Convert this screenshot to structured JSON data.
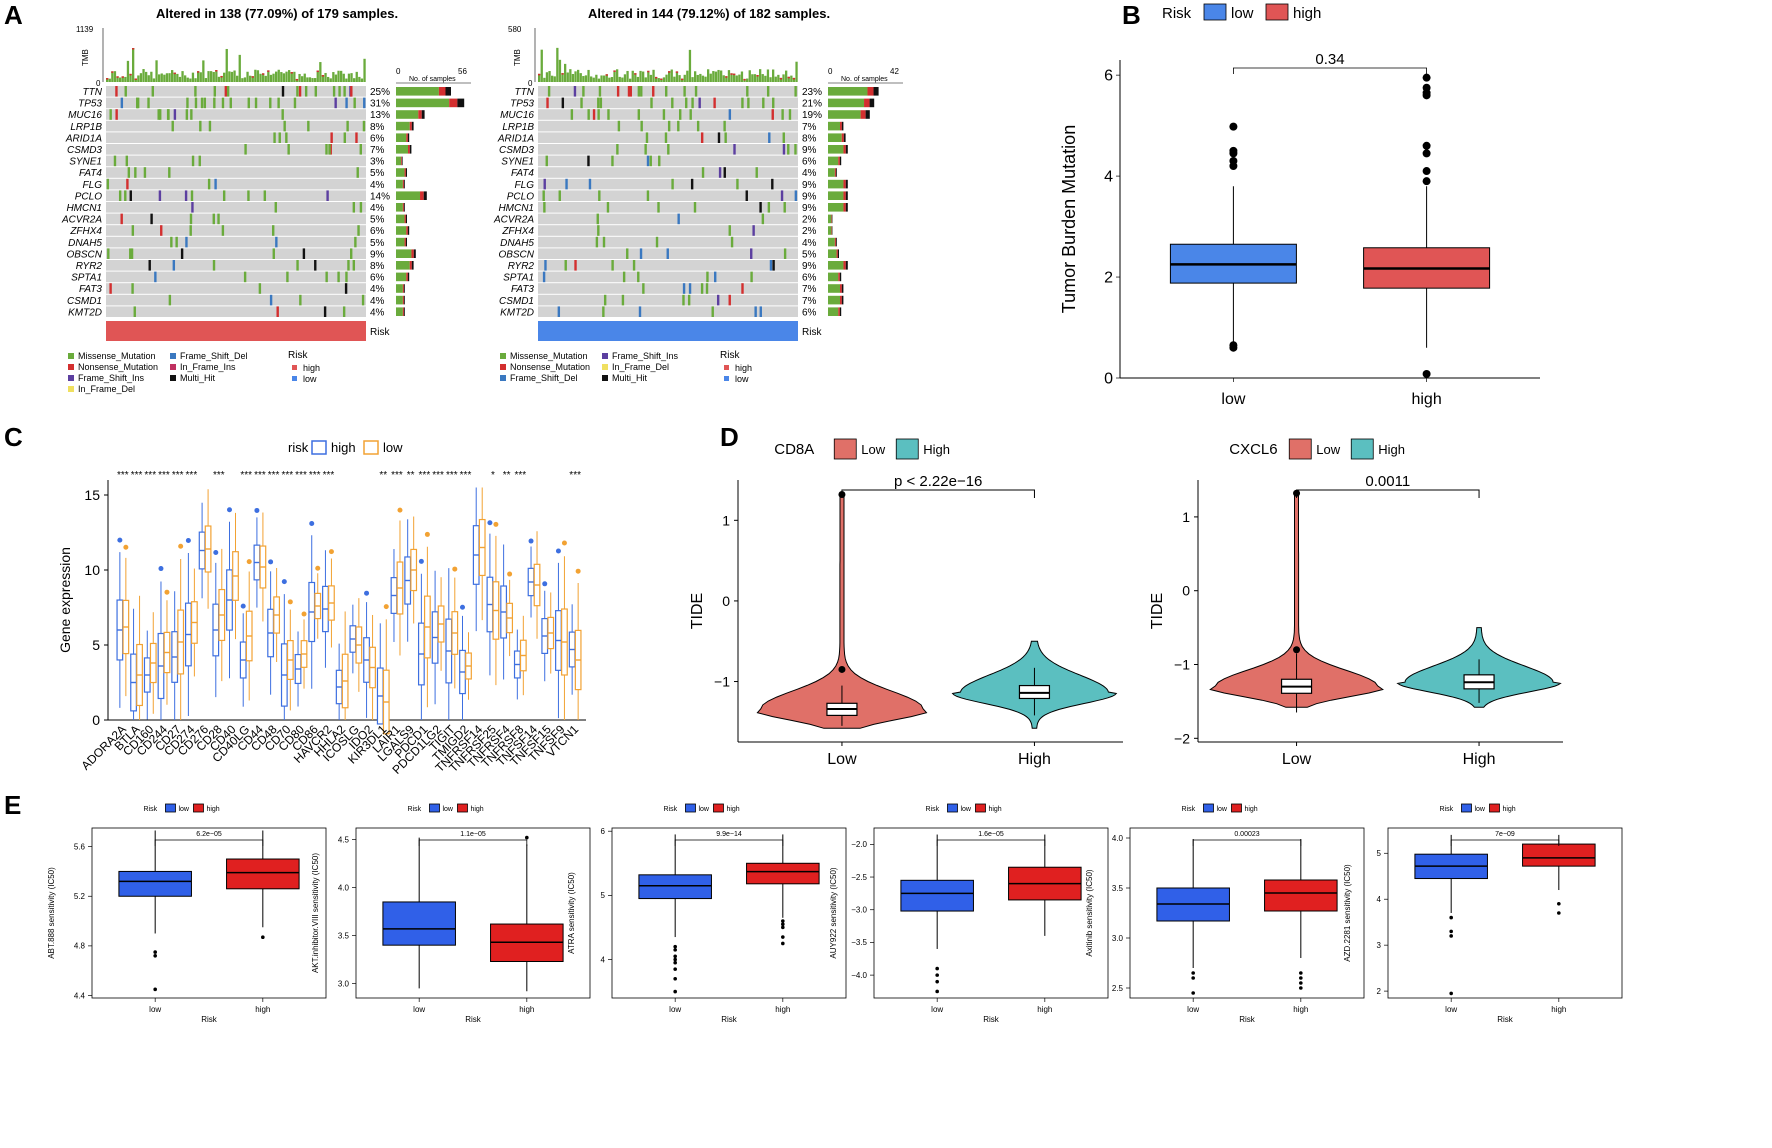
{
  "panel_labels": [
    "A",
    "B",
    "C",
    "D",
    "E"
  ],
  "chart_data": [
    {
      "type": "oncoplot",
      "panel": "A-left",
      "title": "Altered in 138 (77.09%) of 179 samples.",
      "tmb_label": "TMB",
      "tmb_max": "1139",
      "tmb_min": "0",
      "bar_axis_label": "No. of samples",
      "bar_axis_min": "0",
      "bar_axis_max": "56",
      "risk_label": "Risk",
      "risk_group": "high",
      "genes": [
        "TTN",
        "TP53",
        "MUC16",
        "LRP1B",
        "ARID1A",
        "CSMD3",
        "SYNE1",
        "FAT4",
        "FLG",
        "PCLO",
        "HMCN1",
        "ACVR2A",
        "ZFHX4",
        "DNAH5",
        "OBSCN",
        "RYR2",
        "SPTA1",
        "FAT3",
        "CSMD1",
        "KMT2D"
      ],
      "percents": [
        "25%",
        "31%",
        "13%",
        "8%",
        "6%",
        "7%",
        "3%",
        "5%",
        "4%",
        "14%",
        "4%",
        "5%",
        "6%",
        "5%",
        "9%",
        "8%",
        "6%",
        "4%",
        "4%",
        "4%"
      ],
      "legend": [
        "Missense_Mutation",
        "Frame_Shift_Del",
        "Nonsense_Mutation",
        "In_Frame_Ins",
        "Frame_Shift_Ins",
        "Multi_Hit",
        "In_Frame_Del"
      ],
      "legend_risk_title": "Risk",
      "legend_risk": [
        "high",
        "low"
      ]
    },
    {
      "type": "oncoplot",
      "panel": "A-right",
      "title": "Altered in 144 (79.12%) of 182 samples.",
      "tmb_label": "TMB",
      "tmb_max": "580",
      "tmb_min": "0",
      "bar_axis_label": "No. of samples",
      "bar_axis_min": "0",
      "bar_axis_max": "42",
      "risk_label": "Risk",
      "risk_group": "low",
      "genes": [
        "TTN",
        "TP53",
        "MUC16",
        "LRP1B",
        "ARID1A",
        "CSMD3",
        "SYNE1",
        "FAT4",
        "FLG",
        "PCLO",
        "HMCN1",
        "ACVR2A",
        "ZFHX4",
        "DNAH5",
        "OBSCN",
        "RYR2",
        "SPTA1",
        "FAT3",
        "CSMD1",
        "KMT2D"
      ],
      "percents": [
        "23%",
        "21%",
        "19%",
        "7%",
        "8%",
        "9%",
        "6%",
        "4%",
        "9%",
        "9%",
        "9%",
        "2%",
        "2%",
        "4%",
        "5%",
        "9%",
        "6%",
        "7%",
        "7%",
        "6%"
      ],
      "legend": [
        "Missense_Mutation",
        "Frame_Shift_Ins",
        "Nonsense_Mutation",
        "In_Frame_Del",
        "Frame_Shift_Del",
        "Multi_Hit"
      ],
      "legend_risk_title": "Risk",
      "legend_risk": [
        "high",
        "low"
      ]
    },
    {
      "type": "box",
      "panel": "B",
      "legend_title": "Risk",
      "categories": [
        "low",
        "high"
      ],
      "colors": [
        "#4a86e8",
        "#e05555"
      ],
      "ylabel": "Tumor Burden Mutation",
      "ylim": [
        0,
        6.3
      ],
      "yticks": [
        "0",
        "2",
        "4",
        "6"
      ],
      "p_value": "0.34",
      "boxes": [
        {
          "name": "low",
          "whisker_low": 0.7,
          "q1": 1.88,
          "median": 2.25,
          "q3": 2.65,
          "whisker_high": 3.8,
          "outliers": [
            0.6,
            0.65,
            4.2,
            4.3,
            4.45,
            4.5,
            4.98
          ]
        },
        {
          "name": "high",
          "whisker_low": 0.6,
          "q1": 1.78,
          "median": 2.17,
          "q3": 2.58,
          "whisker_high": 3.8,
          "outliers": [
            0.08,
            3.9,
            4.1,
            4.45,
            4.6,
            5.6,
            5.65,
            5.75,
            5.95
          ]
        }
      ]
    },
    {
      "type": "box",
      "panel": "C",
      "legend_title": "risk",
      "legend": [
        "high",
        "low"
      ],
      "colors": [
        "#3d6fe0",
        "#f2a233"
      ],
      "ylabel": "Gene expression",
      "ylim": [
        0,
        16
      ],
      "yticks": [
        "0",
        "5",
        "10",
        "15"
      ],
      "genes": [
        "ADORA2A",
        "BTLA",
        "CD160",
        "CD244",
        "CD27",
        "CD274",
        "CD276",
        "CD28",
        "CD40",
        "CD40LG",
        "CD44",
        "CD48",
        "CD70",
        "CD80",
        "CD86",
        "HAVCR2",
        "HHLA2",
        "ICOSLG",
        "IDO2",
        "KIR3DL1",
        "LAIR1",
        "LGALS9",
        "PDCD1",
        "PDCD1LG2",
        "TIGIT",
        "TMIGD2",
        "TNFRSF14",
        "TNFRSF25",
        "TNFRSF4",
        "TNFRSF8",
        "TNFSF14",
        "TNFSF15",
        "TNFSF9",
        "VTCN1"
      ],
      "high_medians": [
        6.0,
        2.5,
        3.0,
        3.6,
        4.2,
        5.7,
        11.3,
        6.0,
        8.0,
        4.0,
        10.5,
        5.8,
        3.0,
        3.4,
        7.2,
        7.4,
        2.2,
        5.4,
        4.0,
        1.6,
        8.3,
        9.3,
        4.4,
        5.5,
        4.6,
        3.2,
        11.0,
        7.7,
        7.2,
        3.7,
        9.2,
        5.6,
        5.3,
        4.7
      ],
      "low_medians": [
        6.2,
        3.0,
        3.8,
        4.5,
        5.2,
        6.5,
        11.4,
        7.0,
        9.6,
        5.6,
        10.2,
        7.0,
        4.0,
        4.4,
        7.6,
        7.8,
        2.6,
        5.0,
        3.5,
        1.2,
        8.8,
        10.0,
        6.2,
        6.4,
        5.8,
        3.6,
        11.5,
        7.3,
        6.8,
        4.3,
        9.0,
        5.8,
        5.2,
        4.0
      ],
      "significance": [
        "***",
        "***",
        "***",
        "***",
        "***",
        "***",
        "",
        "***",
        "",
        "***",
        "***",
        "***",
        "***",
        "***",
        "***",
        "***",
        "",
        "",
        "",
        "**",
        "***",
        "**",
        "***",
        "***",
        "***",
        "***",
        "",
        "*",
        "**",
        "***",
        "",
        "",
        "",
        "***"
      ]
    },
    {
      "type": "violin",
      "panel": "D-left",
      "gene": "CD8A",
      "legend": [
        "Low",
        "High"
      ],
      "colors": [
        "#e07068",
        "#5bbfc0"
      ],
      "categories": [
        "Low",
        "High"
      ],
      "ylabel": "TIDE",
      "ylim": [
        -1.75,
        1.5
      ],
      "yticks": [
        "1",
        "0",
        "−1"
      ],
      "p_value": "p < 2.22e−16",
      "boxes": [
        {
          "name": "Low",
          "q1": -1.42,
          "median": -1.34,
          "q3": -1.27,
          "whisker_low": -1.55,
          "whisker_high": -1.05,
          "outliers": [
            -0.85,
            1.32
          ]
        },
        {
          "name": "High",
          "q1": -1.21,
          "median": -1.14,
          "q3": -1.05,
          "whisker_low": -1.42,
          "whisker_high": -0.83,
          "outliers": []
        }
      ]
    },
    {
      "type": "violin",
      "panel": "D-right",
      "gene": "CXCL6",
      "legend": [
        "Low",
        "High"
      ],
      "colors": [
        "#e07068",
        "#5bbfc0"
      ],
      "categories": [
        "Low",
        "High"
      ],
      "ylabel": "TIDE",
      "ylim": [
        -2.05,
        1.5
      ],
      "yticks": [
        "1",
        "0",
        "−1",
        "−2"
      ],
      "p_value": "0.0011",
      "boxes": [
        {
          "name": "Low",
          "q1": -1.39,
          "median": -1.3,
          "q3": -1.2,
          "whisker_low": -1.65,
          "whisker_high": -0.85,
          "outliers": [
            -0.8,
            1.32
          ]
        },
        {
          "name": "High",
          "q1": -1.33,
          "median": -1.24,
          "q3": -1.14,
          "whisker_low": -1.52,
          "whisker_high": -0.93,
          "outliers": []
        }
      ]
    },
    {
      "type": "box",
      "panel": "E1",
      "ylabel": "ABT.888 sensitivity (IC50)",
      "xlabel": "Risk",
      "legend_title": "Risk",
      "legend": [
        "low",
        "high"
      ],
      "colors": [
        "#3060e8",
        "#e02020"
      ],
      "categories": [
        "low",
        "high"
      ],
      "p_value": "6.2e−05",
      "ylim": [
        4.38,
        5.75
      ],
      "yticks": [
        4.4,
        4.8,
        5.2,
        5.6
      ],
      "ytick_labels": [
        "4.4",
        "4.8",
        "5.2",
        "5.6"
      ],
      "boxes": [
        {
          "name": "low",
          "whisker_low": 4.9,
          "q1": 5.2,
          "median": 5.32,
          "q3": 5.4,
          "whisker_high": 5.73,
          "outliers": [
            4.75,
            4.72,
            4.45
          ]
        },
        {
          "name": "high",
          "whisker_low": 4.95,
          "q1": 5.26,
          "median": 5.39,
          "q3": 5.5,
          "whisker_high": 5.73,
          "outliers": [
            4.87
          ]
        }
      ]
    },
    {
      "type": "box",
      "panel": "E2",
      "ylabel": "AKT.inhibitor.VIII sensitivity (IC50)",
      "xlabel": "Risk",
      "legend_title": "Risk",
      "legend": [
        "low",
        "high"
      ],
      "colors": [
        "#3060e8",
        "#e02020"
      ],
      "categories": [
        "low",
        "high"
      ],
      "p_value": "1.1e−05",
      "ylim": [
        2.85,
        4.62
      ],
      "yticks": [
        3.0,
        3.5,
        4.0,
        4.5
      ],
      "ytick_labels": [
        "3.0",
        "3.5",
        "4.0",
        "4.5"
      ],
      "boxes": [
        {
          "name": "low",
          "whisker_low": 2.95,
          "q1": 3.4,
          "median": 3.57,
          "q3": 3.85,
          "whisker_high": 4.52,
          "outliers": []
        },
        {
          "name": "high",
          "whisker_low": 2.92,
          "q1": 3.23,
          "median": 3.43,
          "q3": 3.62,
          "whisker_high": 4.45,
          "outliers": [
            4.52
          ]
        }
      ]
    },
    {
      "type": "box",
      "panel": "E3",
      "ylabel": "ATRA sensitivity (IC50)",
      "xlabel": "Risk",
      "legend_title": "Risk",
      "legend": [
        "low",
        "high"
      ],
      "colors": [
        "#3060e8",
        "#e02020"
      ],
      "categories": [
        "low",
        "high"
      ],
      "p_value": "9.9e−14",
      "ylim": [
        3.4,
        6.05
      ],
      "yticks": [
        4,
        5,
        6
      ],
      "ytick_labels": [
        "4",
        "5",
        "6"
      ],
      "boxes": [
        {
          "name": "low",
          "whisker_low": 4.35,
          "q1": 4.95,
          "median": 5.15,
          "q3": 5.32,
          "whisker_high": 5.95,
          "outliers": [
            4.2,
            4.15,
            4.05,
            4.0,
            3.95,
            3.85,
            3.7,
            3.5
          ]
        },
        {
          "name": "high",
          "whisker_low": 4.65,
          "q1": 5.18,
          "median": 5.37,
          "q3": 5.5,
          "whisker_high": 5.95,
          "outliers": [
            4.6,
            4.55,
            4.5,
            4.35,
            4.25
          ]
        }
      ]
    },
    {
      "type": "box",
      "panel": "E4",
      "ylabel": "AUY922 sensitivity (IC50)",
      "xlabel": "Risk",
      "legend_title": "Risk",
      "legend": [
        "low",
        "high"
      ],
      "colors": [
        "#3060e8",
        "#e02020"
      ],
      "categories": [
        "low",
        "high"
      ],
      "p_value": "1.6e−05",
      "ylim": [
        -4.35,
        -1.75
      ],
      "yticks": [
        -4.0,
        -3.5,
        -3.0,
        -2.5,
        -2.0
      ],
      "ytick_labels": [
        "−4.0",
        "−3.5",
        "−3.0",
        "−2.5",
        "−2.0"
      ],
      "boxes": [
        {
          "name": "low",
          "whisker_low": -3.6,
          "q1": -3.02,
          "median": -2.75,
          "q3": -2.55,
          "whisker_high": -1.85,
          "outliers": [
            -3.9,
            -4.0,
            -4.1,
            -4.25
          ]
        },
        {
          "name": "high",
          "whisker_low": -3.4,
          "q1": -2.85,
          "median": -2.6,
          "q3": -2.35,
          "whisker_high": -1.85,
          "outliers": []
        }
      ]
    },
    {
      "type": "box",
      "panel": "E5",
      "ylabel": "Axitinib sensitivity (IC50)",
      "xlabel": "Risk",
      "legend_title": "Risk",
      "legend": [
        "low",
        "high"
      ],
      "colors": [
        "#3060e8",
        "#e02020"
      ],
      "categories": [
        "low",
        "high"
      ],
      "p_value": "0.00023",
      "ylim": [
        2.4,
        4.1
      ],
      "yticks": [
        2.5,
        3.0,
        3.5,
        4.0
      ],
      "ytick_labels": [
        "2.5",
        "3.0",
        "3.5",
        "4.0"
      ],
      "boxes": [
        {
          "name": "low",
          "whisker_low": 2.7,
          "q1": 3.17,
          "median": 3.34,
          "q3": 3.5,
          "whisker_high": 3.99,
          "outliers": [
            2.65,
            2.6,
            2.45
          ]
        },
        {
          "name": "high",
          "whisker_low": 2.8,
          "q1": 3.27,
          "median": 3.45,
          "q3": 3.58,
          "whisker_high": 3.99,
          "outliers": [
            2.65,
            2.6,
            2.55,
            2.5
          ]
        }
      ]
    },
    {
      "type": "box",
      "panel": "E6",
      "ylabel": "AZD.2281 sensitivity (IC50)",
      "xlabel": "Risk",
      "legend_title": "Risk",
      "legend": [
        "low",
        "high"
      ],
      "colors": [
        "#3060e8",
        "#e02020"
      ],
      "categories": [
        "low",
        "high"
      ],
      "p_value": "7e−09",
      "ylim": [
        1.85,
        5.55
      ],
      "yticks": [
        2,
        3,
        4,
        5
      ],
      "ytick_labels": [
        "2",
        "3",
        "4",
        "5"
      ],
      "boxes": [
        {
          "name": "low",
          "whisker_low": 3.7,
          "q1": 4.45,
          "median": 4.72,
          "q3": 4.98,
          "whisker_high": 5.4,
          "outliers": [
            3.6,
            3.3,
            3.2,
            1.95
          ]
        },
        {
          "name": "high",
          "whisker_low": 4.2,
          "q1": 4.72,
          "median": 4.9,
          "q3": 5.2,
          "whisker_high": 5.4,
          "outliers": [
            3.9,
            3.7
          ]
        }
      ]
    }
  ]
}
